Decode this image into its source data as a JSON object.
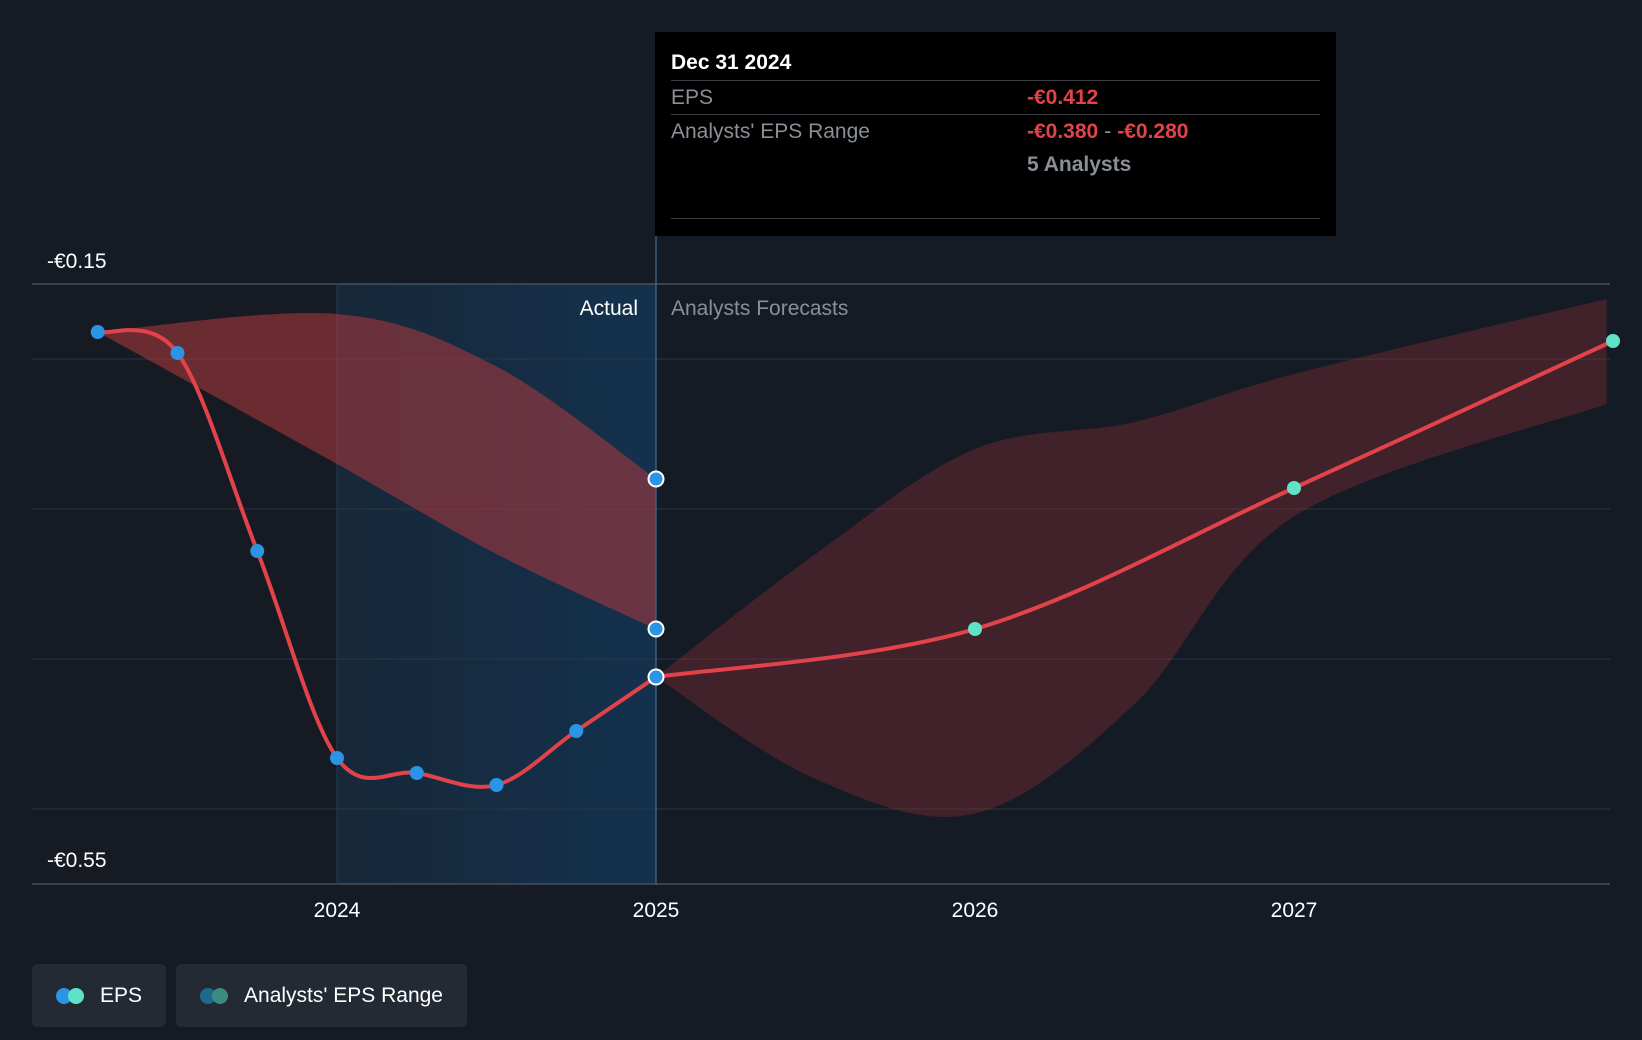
{
  "chart_data": {
    "type": "line",
    "y_tick_labels": [
      "-€0.15",
      "-€0.55"
    ],
    "x_tick_labels": [
      "2024",
      "2025",
      "2026",
      "2027"
    ],
    "region_labels": {
      "actual": "Actual",
      "forecast": "Analysts Forecasts"
    },
    "ylim": [
      -0.55,
      -0.15
    ],
    "xlim": [
      2023.3,
      2027.98
    ],
    "grid": true,
    "eps_actual": {
      "x": [
        2023.25,
        2023.5,
        2023.75,
        2024.0,
        2024.25,
        2024.5,
        2024.75,
        2025.0
      ],
      "y": [
        -0.182,
        -0.196,
        -0.328,
        -0.466,
        -0.476,
        -0.484,
        -0.448,
        -0.412
      ]
    },
    "eps_forecast": {
      "x": [
        2025.0,
        2026.0,
        2027.0,
        2028.0
      ],
      "y": [
        -0.412,
        -0.38,
        -0.286,
        -0.188
      ]
    },
    "range_actual": {
      "x": [
        2023.25,
        2024.0,
        2024.5,
        2025.0
      ],
      "high": [
        -0.182,
        -0.17,
        -0.205,
        -0.28
      ],
      "low": [
        -0.182,
        -0.27,
        -0.33,
        -0.38
      ]
    },
    "range_forecast": {
      "x": [
        2025.0,
        2025.5,
        2026.0,
        2026.5,
        2027.0,
        2027.98
      ],
      "high": [
        -0.412,
        -0.33,
        -0.26,
        -0.242,
        -0.21,
        -0.16
      ],
      "low": [
        -0.412,
        -0.48,
        -0.503,
        -0.43,
        -0.305,
        -0.23
      ]
    },
    "colors": {
      "eps_line": "#e2434b",
      "eps_dot_actual": "#2b94e4",
      "eps_dot_forecast": "#5fe3c8",
      "range_fill": "#e2434b"
    }
  },
  "tooltip": {
    "date": "Dec 31 2024",
    "eps_label": "EPS",
    "eps_value": "-€0.412",
    "range_label": "Analysts' EPS Range",
    "range_low": "-€0.380",
    "range_sep": "-",
    "range_high": "-€0.280",
    "analysts": "5 Analysts"
  },
  "legend": {
    "eps_label": "EPS",
    "range_label": "Analysts' EPS Range",
    "eps_colors": [
      "#2b94e4",
      "#5fe3c8"
    ],
    "range_colors": [
      "#1e6a8c",
      "#3d8a82"
    ]
  }
}
